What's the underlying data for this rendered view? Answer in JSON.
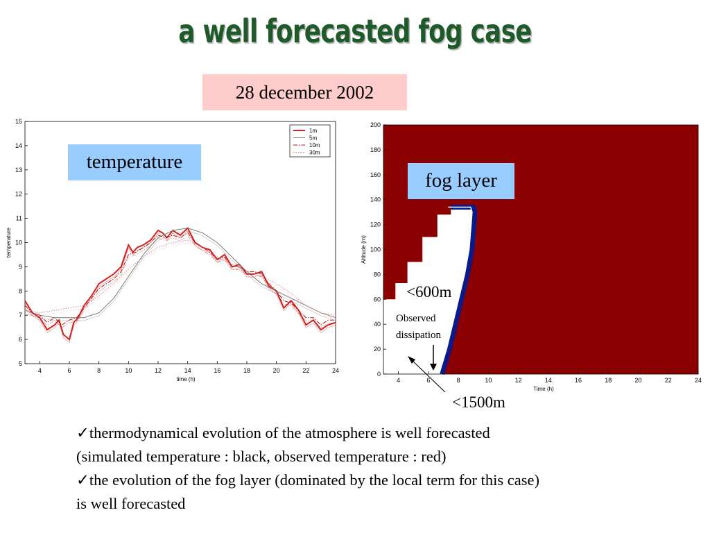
{
  "title": "a well forecasted fog case",
  "date": "28 december 2002",
  "labels": {
    "temperature_tag": "temperature",
    "fog_tag": "fog layer",
    "fog_600": "<600m",
    "fog_1500": "<1500m",
    "observed_dissipation_1": "Observed",
    "observed_dissipation_2": "dissipation"
  },
  "bullets": [
    {
      "check": "✓",
      "text": "thermodynamical evolution of the atmosphere is well forecasted"
    },
    {
      "check": "",
      "text": "(simulated temperature : black, observed temperature : red)"
    },
    {
      "check": "✓",
      "text": "the evolution of the fog layer  (dominated by the local term for this case)"
    },
    {
      "check": "",
      "text": "is well forecasted"
    }
  ],
  "colors": {
    "observed": "#d62020",
    "simulated": "#7a7a7a",
    "fog": "#8b0000",
    "fog_edge": "#0a1a8a",
    "tag": "#99ccff",
    "date_box": "#ffcccc",
    "title": "#1f5a2a"
  },
  "chart_data": [
    {
      "type": "line",
      "xlabel": "time (h)",
      "ylabel": "temperature",
      "xlim": [
        3,
        24
      ],
      "ylim": [
        5,
        15
      ],
      "xticks": [
        4,
        6,
        8,
        10,
        12,
        14,
        16,
        18,
        20,
        22,
        24
      ],
      "yticks": [
        5,
        6,
        7,
        8,
        9,
        10,
        11,
        12,
        13,
        14,
        15
      ],
      "legend": [
        "1m",
        "5m",
        "10m",
        "30m"
      ],
      "legend_position": "top-right",
      "series": [
        {
          "name": "1m",
          "style": "solid",
          "color": "#d62020",
          "x": [
            3,
            3.5,
            4,
            4.5,
            5,
            5.3,
            5.6,
            6,
            6.3,
            6.6,
            7,
            7.5,
            8,
            8.5,
            9,
            9.5,
            10,
            10.3,
            10.6,
            11,
            11.5,
            12,
            12.3,
            12.6,
            13,
            13.5,
            14,
            14.5,
            15,
            15.5,
            16,
            16.5,
            17,
            17.5,
            18,
            18.5,
            19,
            19.5,
            20,
            20.5,
            21,
            21.5,
            22,
            22.5,
            23,
            23.5,
            24
          ],
          "y": [
            7.6,
            7.1,
            6.9,
            6.4,
            6.6,
            6.8,
            6.2,
            6.0,
            6.7,
            6.9,
            7.4,
            7.8,
            8.3,
            8.5,
            8.7,
            9.0,
            9.9,
            9.6,
            9.8,
            9.9,
            10.1,
            10.5,
            10.4,
            10.2,
            10.5,
            10.3,
            10.6,
            10.0,
            9.8,
            9.7,
            9.3,
            9.5,
            9.0,
            9.1,
            8.7,
            8.7,
            8.8,
            8.2,
            8.0,
            7.3,
            7.6,
            7.2,
            6.6,
            6.8,
            6.4,
            6.6,
            6.7
          ]
        },
        {
          "name": "5m",
          "style": "solid",
          "color": "#7a7a7a",
          "x": [
            3,
            4,
            5,
            6,
            7,
            8,
            9,
            10,
            11,
            12,
            13,
            14,
            15,
            16,
            17,
            18,
            19,
            20,
            21,
            22,
            23,
            24
          ],
          "y": [
            7.2,
            7.0,
            6.9,
            6.9,
            6.9,
            7.1,
            7.7,
            8.6,
            9.5,
            10.2,
            10.5,
            10.6,
            10.4,
            10.0,
            9.4,
            8.8,
            8.3,
            8.0,
            7.7,
            7.4,
            7.1,
            6.9
          ]
        },
        {
          "name": "10m",
          "style": "dashdot",
          "color": "#b01010",
          "x": [
            3,
            3.5,
            4,
            4.5,
            5,
            5.5,
            6,
            6.5,
            7,
            7.5,
            8,
            8.5,
            9,
            9.5,
            10,
            10.5,
            11,
            11.5,
            12,
            12.5,
            13,
            13.5,
            14,
            14.5,
            15,
            15.5,
            16,
            16.5,
            17,
            17.5,
            18,
            18.5,
            19,
            19.5,
            20,
            20.5,
            21,
            21.5,
            22,
            22.5,
            23,
            23.5,
            24
          ],
          "y": [
            7.4,
            7.1,
            7.0,
            6.7,
            6.9,
            6.6,
            6.8,
            6.9,
            7.3,
            7.7,
            8.1,
            8.3,
            8.5,
            8.8,
            9.5,
            9.6,
            9.8,
            10.0,
            10.3,
            10.2,
            10.3,
            10.2,
            10.4,
            10.0,
            9.8,
            9.6,
            9.3,
            9.4,
            9.0,
            9.0,
            8.8,
            8.8,
            8.7,
            8.3,
            8.0,
            7.6,
            7.5,
            7.2,
            6.9,
            6.9,
            6.6,
            6.8,
            6.8
          ]
        },
        {
          "name": "30m",
          "style": "dotted",
          "color": "#e08080",
          "x": [
            3,
            4,
            5,
            6,
            7,
            8,
            9,
            10,
            11,
            12,
            13,
            14,
            15,
            16,
            17,
            18,
            19,
            20,
            21,
            22,
            23,
            24
          ],
          "y": [
            7.2,
            7.1,
            7.2,
            7.3,
            7.4,
            7.8,
            8.3,
            8.9,
            9.4,
            9.8,
            10.0,
            10.1,
            9.8,
            9.4,
            9.1,
            8.8,
            8.6,
            8.3,
            7.9,
            7.4,
            7.1,
            7.0
          ]
        }
      ]
    },
    {
      "type": "area",
      "xlabel": "Time (h)",
      "ylabel": "Altitude (m)",
      "xlim": [
        3,
        24
      ],
      "ylim": [
        0,
        200
      ],
      "xticks": [
        4,
        6,
        8,
        10,
        12,
        14,
        16,
        18,
        20,
        22,
        24
      ],
      "yticks": [
        0,
        20,
        40,
        60,
        80,
        100,
        120,
        140,
        160,
        180,
        200
      ],
      "fog_boundary": {
        "x": [
          3,
          3.8,
          3.8,
          4.6,
          4.6,
          5.6,
          5.6,
          6.6,
          6.6,
          7.5,
          7.5,
          8.5,
          9.0,
          9.1,
          8.9,
          8.6,
          8.2,
          7.8,
          7.4,
          7.1,
          6.9
        ],
        "y": [
          60,
          60,
          73,
          73,
          90,
          90,
          110,
          110,
          128,
          128,
          134,
          134,
          134,
          130,
          100,
          80,
          60,
          40,
          20,
          8,
          0
        ]
      }
    }
  ]
}
